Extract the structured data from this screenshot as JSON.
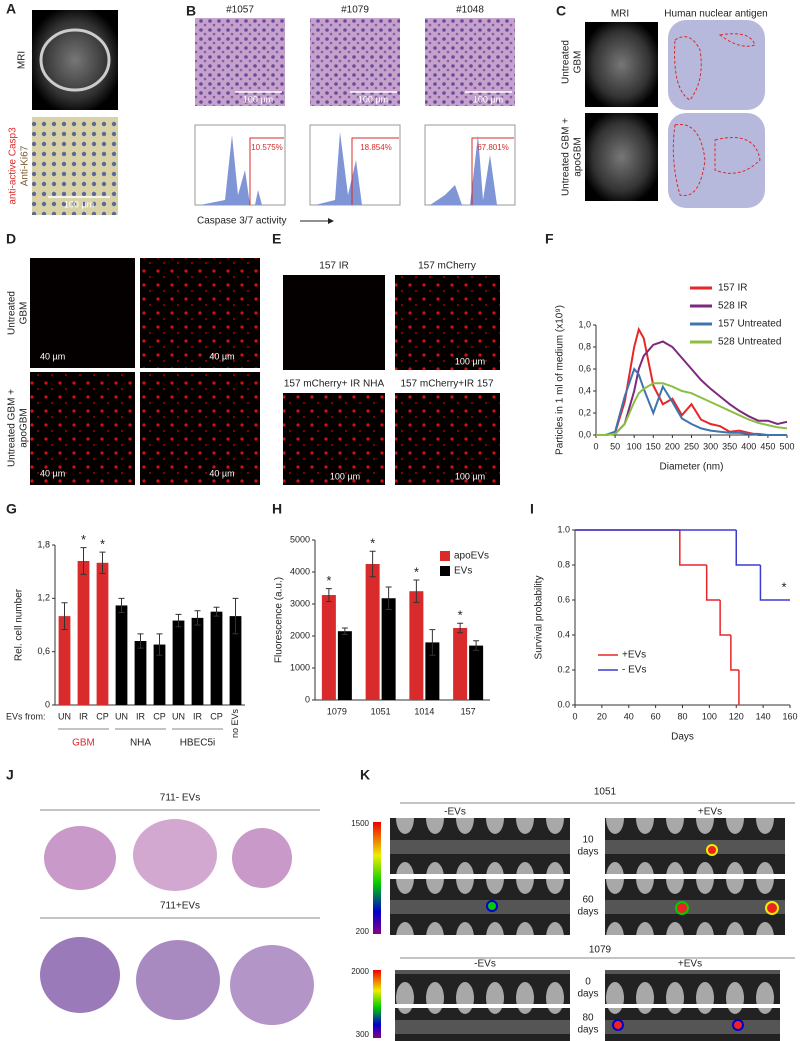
{
  "panels": {
    "A": {
      "label": "A",
      "mri": "MRI",
      "stain_1": "anti-active Casp3",
      "stain_2": "Anti-Ki67",
      "scale": "100 µm"
    },
    "B": {
      "label": "B",
      "samples": [
        "#1057",
        "#1079",
        "#1048"
      ],
      "scale": [
        "100 µm",
        "100 µm",
        "100 µm"
      ],
      "percentages": [
        "10.575%",
        "18.854%",
        "67.801%"
      ],
      "xlabel": "Caspase 3/7 activity"
    },
    "C": {
      "label": "C",
      "columns": [
        "MRI",
        "Human nuclear antigen"
      ],
      "rows": [
        [
          "Untreated",
          "GBM"
        ],
        [
          "Untreated GBM +",
          "apoGBM"
        ]
      ]
    },
    "D": {
      "label": "D",
      "rows": [
        [
          "Untreated",
          "GBM"
        ],
        [
          "Untreated GBM +",
          "apoGBM"
        ]
      ],
      "scales": [
        "40 µm",
        "40 µm",
        "40 µm",
        "40 µm"
      ]
    },
    "E": {
      "label": "E",
      "captions": [
        "157 IR",
        "157 mCherry",
        "157 mCherry+ IR NHA",
        "157 mCherry+IR 157"
      ],
      "scales": [
        "100 µm",
        "100 µm",
        "100 µm"
      ]
    },
    "J": {
      "label": "J",
      "groups": [
        "711- EVs",
        "711+EVs"
      ]
    },
    "K": {
      "label": "K",
      "experiments": [
        {
          "title": "1051",
          "groups": [
            "-EVs",
            "+EVs"
          ],
          "times": [
            [
              "10",
              "days"
            ],
            [
              "60",
              "days"
            ]
          ],
          "scale": [
            "1500",
            "200"
          ]
        },
        {
          "title": "1079",
          "groups": [
            "-EVs",
            "+EVs"
          ],
          "times": [
            [
              "0",
              "days"
            ],
            [
              "80",
              "days"
            ]
          ],
          "scale": [
            "2000",
            "300"
          ]
        }
      ]
    }
  },
  "chart_data": [
    {
      "type": "line",
      "label": "F",
      "xlabel": "Diameter (nm)",
      "ylabel": "Particles in 1 ml of medium (x10⁹)",
      "x": [
        0,
        25,
        50,
        75,
        100,
        112,
        125,
        150,
        175,
        200,
        225,
        250,
        275,
        300,
        325,
        350,
        375,
        400,
        425,
        450,
        475,
        500
      ],
      "series": [
        {
          "name": "157 IR",
          "color": "#e8262a",
          "values": [
            0,
            0,
            0.02,
            0.3,
            0.8,
            0.96,
            0.88,
            0.45,
            0.28,
            0.33,
            0.18,
            0.28,
            0.14,
            0.1,
            0.08,
            0.03,
            0.04,
            0.02,
            0,
            0,
            0,
            0
          ]
        },
        {
          "name": "528 IR",
          "color": "#7b2a7e",
          "values": [
            0,
            0,
            0.01,
            0.1,
            0.4,
            0.6,
            0.72,
            0.82,
            0.85,
            0.8,
            0.7,
            0.6,
            0.5,
            0.42,
            0.35,
            0.28,
            0.22,
            0.17,
            0.13,
            0.13,
            0.1,
            0.12
          ]
        },
        {
          "name": "157 Untreated",
          "color": "#3f75ae",
          "values": [
            0,
            0,
            0.03,
            0.35,
            0.6,
            0.55,
            0.42,
            0.2,
            0.44,
            0.3,
            0.15,
            0.1,
            0.06,
            0.04,
            0.03,
            0.02,
            0.02,
            0.01,
            0.01,
            0,
            0,
            0
          ]
        },
        {
          "name": "528 Untreated",
          "color": "#8cbf3f",
          "values": [
            0,
            0,
            0.01,
            0.1,
            0.3,
            0.38,
            0.42,
            0.47,
            0.47,
            0.44,
            0.4,
            0.38,
            0.34,
            0.3,
            0.26,
            0.22,
            0.18,
            0.14,
            0.11,
            0.09,
            0.07,
            0.06
          ]
        }
      ],
      "xlim": [
        0,
        500
      ],
      "xticks": [
        0,
        50,
        100,
        150,
        200,
        250,
        300,
        350,
        400,
        450,
        500
      ],
      "ylim": [
        0,
        1
      ],
      "yticks": [
        {
          "value": 0,
          "label": "0,0"
        },
        {
          "value": 0.2,
          "label": "0,2"
        },
        {
          "value": 0.4,
          "label": "0,4"
        },
        {
          "value": 0.6,
          "label": "0,6"
        },
        {
          "value": 0.8,
          "label": "0,8"
        },
        {
          "value": 1,
          "label": "1,0"
        }
      ]
    },
    {
      "type": "bar",
      "label": "G",
      "ylabel": "Rel. cell number",
      "axis_prefix": "EVs from:",
      "categories": [
        "UN",
        "IR",
        "CP",
        "UN",
        "IR",
        "CP",
        "UN",
        "IR",
        "CP",
        "no EVs"
      ],
      "values": [
        1.0,
        1.62,
        1.6,
        1.12,
        0.72,
        0.68,
        0.95,
        0.98,
        1.05,
        1.0
      ],
      "errors": [
        0.15,
        0.15,
        0.12,
        0.08,
        0.08,
        0.12,
        0.07,
        0.08,
        0.05,
        0.2
      ],
      "colors": [
        "#d92b2b",
        "#d92b2b",
        "#d92b2b",
        "#000000",
        "#000000",
        "#000000",
        "#000000",
        "#000000",
        "#000000",
        "#000000"
      ],
      "significance": [
        null,
        "*",
        "*",
        null,
        null,
        null,
        null,
        null,
        null,
        null
      ],
      "groups": [
        "GBM",
        "NHA",
        "HBEC5i"
      ],
      "group_colors": [
        "#d92b2b",
        "#222222",
        "#222222"
      ],
      "ylim": [
        0,
        1.8
      ],
      "yticks": [
        0,
        {
          "value": 0.6,
          "label": "0,6"
        },
        {
          "value": 1.2,
          "label": "1,2"
        },
        {
          "value": 1.8,
          "label": "1,8"
        }
      ]
    },
    {
      "type": "grouped_bar",
      "label": "H",
      "ylabel": "Fluorescence (a.u.)",
      "categories": [
        "1079",
        "1051",
        "1014",
        "157"
      ],
      "series": [
        {
          "name": "apoEVs",
          "color": "#d92b2b",
          "values": [
            3280,
            4250,
            3400,
            2250
          ],
          "errors": [
            200,
            400,
            350,
            150
          ],
          "significance": [
            "*",
            "*",
            "*",
            "*"
          ]
        },
        {
          "name": "EVs",
          "color": "#000000",
          "values": [
            2150,
            3180,
            1800,
            1700
          ],
          "errors": [
            100,
            350,
            400,
            150
          ]
        }
      ],
      "ylim": [
        0,
        5000
      ],
      "yticks": [
        0,
        1000,
        2000,
        3000,
        4000,
        5000
      ]
    },
    {
      "type": "step",
      "label": "I",
      "xlabel": "Days",
      "ylabel": "Survival probability",
      "annotation": "*",
      "series": [
        {
          "name": "+EVs",
          "color": "#e8262a",
          "x": [
            0,
            78,
            98,
            108,
            116,
            122
          ],
          "values": [
            1,
            0.8,
            0.6,
            0.4,
            0.2,
            0
          ]
        },
        {
          "name": "- EVs",
          "color": "#3b3bd0",
          "x": [
            0,
            120,
            138,
            160
          ],
          "values": [
            1,
            0.8,
            0.6,
            0.6
          ]
        }
      ],
      "xlim": [
        0,
        160
      ],
      "xticks": [
        0,
        20,
        40,
        60,
        80,
        100,
        120,
        140,
        160
      ],
      "ylim": [
        0,
        1
      ],
      "yticks": [
        {
          "value": 0,
          "label": "0.0"
        },
        {
          "value": 0.2,
          "label": "0.2"
        },
        {
          "value": 0.4,
          "label": "0.4"
        },
        {
          "value": 0.6,
          "label": "0.6"
        },
        {
          "value": 0.8,
          "label": "0.8"
        },
        {
          "value": 1,
          "label": "1.0"
        }
      ]
    }
  ]
}
